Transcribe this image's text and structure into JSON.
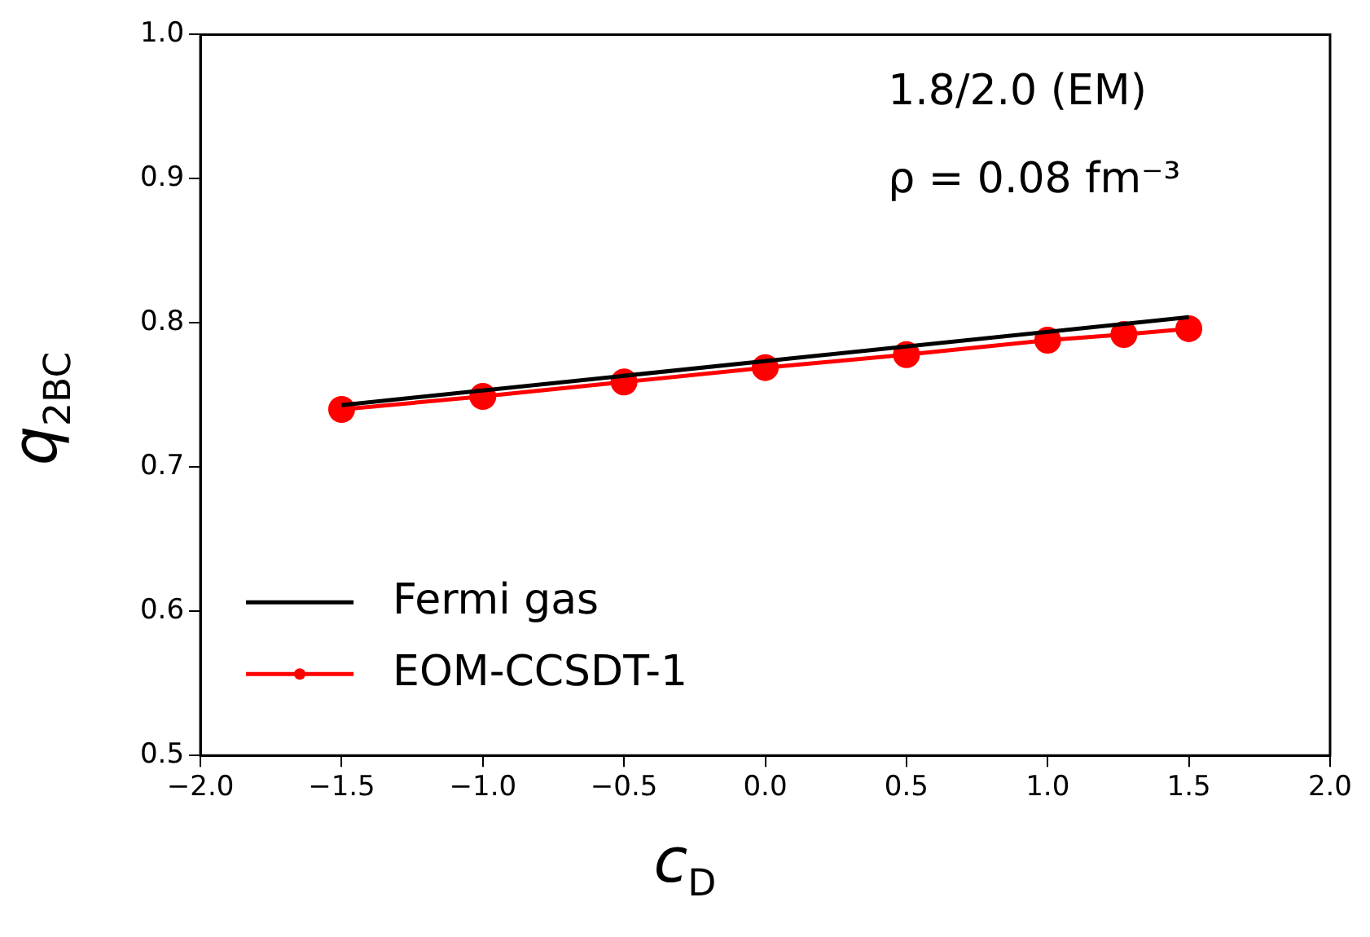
{
  "chart_data": {
    "type": "line",
    "xlabel": "c$_{D}$",
    "ylabel": "q$_{2BC}$",
    "annotations": [
      "1.8/2.0 (EM)",
      "ρ = 0.08 fm⁻³"
    ],
    "xlim": [
      -2.0,
      2.0
    ],
    "xticks": [
      {
        "value": -2,
        "label": "−2.0"
      },
      {
        "value": -1.5,
        "label": "−1.5"
      },
      {
        "value": -1,
        "label": "−1.0"
      },
      {
        "value": -0.5,
        "label": "−0.5"
      },
      {
        "value": 0,
        "label": "0.0"
      },
      {
        "value": 0.5,
        "label": "0.5"
      },
      {
        "value": 1,
        "label": "1.0"
      },
      {
        "value": 1.5,
        "label": "1.5"
      },
      {
        "value": 2,
        "label": "2.0"
      }
    ],
    "ylim": [
      0.5,
      1.0
    ],
    "yticks": [
      {
        "value": 0.5,
        "label": "0.5"
      },
      {
        "value": 0.6,
        "label": "0.6"
      },
      {
        "value": 0.7,
        "label": "0.7"
      },
      {
        "value": 0.8,
        "label": "0.8"
      },
      {
        "value": 0.9,
        "label": "0.9"
      },
      {
        "value": 1.0,
        "label": "1.0"
      }
    ],
    "grid": false,
    "legend": "bottom left",
    "series": [
      {
        "name": "Fermi gas",
        "color": "#000000",
        "marker": "none",
        "x": [
          -1.5,
          1.5
        ],
        "values": [
          0.743,
          0.804
        ]
      },
      {
        "name": "EOM-CCSDT-1",
        "color": "#ff0000",
        "marker": "circle",
        "x": [
          -1.5,
          -1.0,
          -0.5,
          0.0,
          0.5,
          1.0,
          1.27,
          1.5
        ],
        "values": [
          0.74,
          0.749,
          0.759,
          0.769,
          0.778,
          0.788,
          0.792,
          0.796
        ]
      }
    ]
  }
}
